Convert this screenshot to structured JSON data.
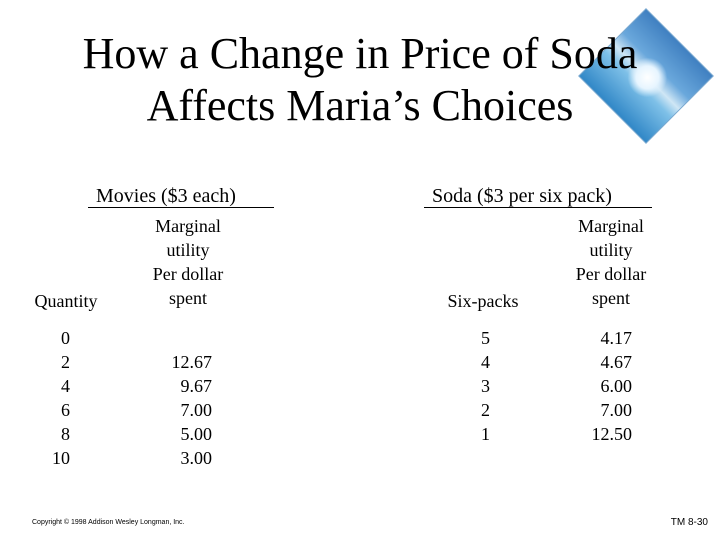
{
  "title": {
    "line1": "How a Change in Price of Soda",
    "line2": "Affects Maria’s Choices"
  },
  "movies": {
    "header": "Movies ($3 each)",
    "quantity_label": "Quantity",
    "mu_label": [
      "Marginal",
      "utility",
      "Per dollar",
      "spent"
    ],
    "quantities": [
      "0",
      "2",
      "4",
      "6",
      "8",
      "10"
    ],
    "mu_values": [
      "12.67",
      "9.67",
      "7.00",
      "5.00",
      "3.00"
    ]
  },
  "soda": {
    "header": "Soda ($3 per six pack)",
    "quantity_label": "Six-packs",
    "mu_label": [
      "Marginal",
      "utility",
      "Per dollar",
      "spent"
    ],
    "quantities": [
      "5",
      "4",
      "3",
      "2",
      "1"
    ],
    "mu_values": [
      "4.17",
      "4.67",
      "6.00",
      "7.00",
      "12.50"
    ]
  },
  "footer": {
    "copyright": "Copyright © 1998 Addison Wesley Longman, Inc.",
    "slide_id": "TM 8-30"
  }
}
